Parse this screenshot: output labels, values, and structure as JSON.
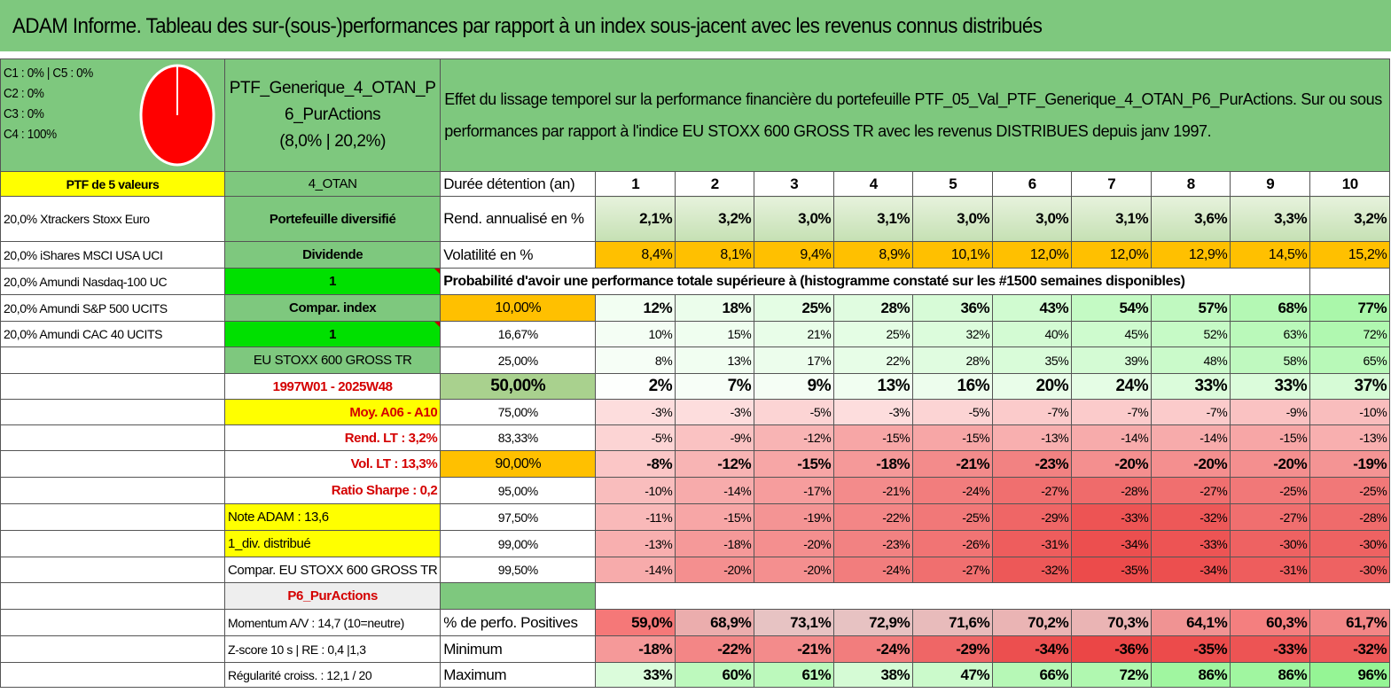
{
  "title": "ADAM Informe. Tableau des sur-(sous-)performances par rapport à un index sous-jacent avec les revenus connus distribués",
  "legend": [
    "C1 : 0% | C5 : 0%",
    "C2 : 0%",
    "C3 : 0%",
    "C4 : 100%"
  ],
  "pie_colors": {
    "fill": "#ff0000",
    "stroke": "#ffffff"
  },
  "ptf_name": "PTF_Generique_4_OTAN_P6_PurActions",
  "ptf_perf": "(8,0% | 20,2%)",
  "description": "Effet du lissage temporel sur la performance financière du portefeuille PTF_05_Val_PTF_Generique_4_OTAN_P6_PurActions. Sur ou sous performances par rapport à l'indice EU STOXX 600 GROSS TR avec les revenus DISTRIBUES depuis janv 1997.",
  "left": {
    "ptf_count": "PTF de 5 valeurs",
    "holdings": [
      "20,0% Xtrackers Stoxx Euro",
      "20,0% iShares MSCI USA UCI",
      "20,0% Amundi Nasdaq-100 UC",
      "20,0% Amundi S&P 500 UCITS",
      "20,0% Amundi CAC 40 UCITS"
    ]
  },
  "mid": {
    "code": "4_OTAN",
    "portfolio_type": "Portefeuille diversifié",
    "dividende": "Dividende",
    "val1": "1",
    "compar_index": "Compar. index",
    "val2": "1",
    "index_name": "EU STOXX 600 GROSS TR",
    "period": "1997W01 - 2025W48",
    "moy": "Moy. A06 - A10",
    "rend_lt": "Rend. LT : 3,2%",
    "vol_lt": "Vol. LT : 13,3%",
    "sharpe": "Ratio Sharpe : 0,2",
    "note": "Note ADAM : 13,6",
    "div": "1_div. distribué",
    "compar": "Compar. EU STOXX 600 GROSS TR",
    "p6": "P6_PurActions",
    "momentum": "Momentum A/V : 14,7 (10=neutre)",
    "zscore": "Z-score 10 s | RE : 0,4 |1,3",
    "regularite": "Régularité croiss. : 12,1 / 20"
  },
  "header": {
    "duree_label": "Durée détention (an)",
    "years": [
      "1",
      "2",
      "3",
      "4",
      "5",
      "6",
      "7",
      "8",
      "9",
      "10"
    ]
  },
  "rend": {
    "label": "Rend. annualisé en %",
    "values": [
      "2,1%",
      "3,2%",
      "3,0%",
      "3,1%",
      "3,0%",
      "3,0%",
      "3,1%",
      "3,6%",
      "3,3%",
      "3,2%"
    ]
  },
  "vol": {
    "label": "Volatilité en %",
    "values": [
      "8,4%",
      "8,1%",
      "9,4%",
      "8,9%",
      "10,1%",
      "12,0%",
      "12,0%",
      "12,9%",
      "14,5%",
      "15,2%"
    ]
  },
  "prob_title": "Probabilité d'avoir une performance totale supérieure à (histogramme constaté sur les #1500 semaines disponibles)",
  "quantiles": [
    {
      "label": "10,00%",
      "values": [
        "12%",
        "18%",
        "25%",
        "28%",
        "36%",
        "43%",
        "54%",
        "57%",
        "68%",
        "77%"
      ]
    },
    {
      "label": "16,67%",
      "values": [
        "10%",
        "15%",
        "21%",
        "25%",
        "32%",
        "40%",
        "45%",
        "52%",
        "63%",
        "72%"
      ]
    },
    {
      "label": "25,00%",
      "values": [
        "8%",
        "13%",
        "17%",
        "22%",
        "28%",
        "35%",
        "39%",
        "48%",
        "58%",
        "65%"
      ]
    },
    {
      "label": "50,00%",
      "values": [
        "2%",
        "7%",
        "9%",
        "13%",
        "16%",
        "20%",
        "24%",
        "33%",
        "33%",
        "37%"
      ]
    },
    {
      "label": "75,00%",
      "values": [
        "-3%",
        "-3%",
        "-5%",
        "-3%",
        "-5%",
        "-7%",
        "-7%",
        "-7%",
        "-9%",
        "-10%"
      ]
    },
    {
      "label": "83,33%",
      "values": [
        "-5%",
        "-9%",
        "-12%",
        "-15%",
        "-15%",
        "-13%",
        "-14%",
        "-14%",
        "-15%",
        "-13%"
      ]
    },
    {
      "label": "90,00%",
      "values": [
        "-8%",
        "-12%",
        "-15%",
        "-18%",
        "-21%",
        "-23%",
        "-20%",
        "-20%",
        "-20%",
        "-19%"
      ]
    },
    {
      "label": "95,00%",
      "values": [
        "-10%",
        "-14%",
        "-17%",
        "-21%",
        "-24%",
        "-27%",
        "-28%",
        "-27%",
        "-25%",
        "-25%"
      ]
    },
    {
      "label": "97,50%",
      "values": [
        "-11%",
        "-15%",
        "-19%",
        "-22%",
        "-25%",
        "-29%",
        "-33%",
        "-32%",
        "-27%",
        "-28%"
      ]
    },
    {
      "label": "99,00%",
      "values": [
        "-13%",
        "-18%",
        "-20%",
        "-23%",
        "-26%",
        "-31%",
        "-34%",
        "-33%",
        "-30%",
        "-30%"
      ]
    },
    {
      "label": "99,50%",
      "values": [
        "-14%",
        "-20%",
        "-20%",
        "-24%",
        "-27%",
        "-32%",
        "-35%",
        "-34%",
        "-31%",
        "-30%"
      ]
    }
  ],
  "positives": {
    "label": "% de perfo. Positives",
    "values": [
      "59,0%",
      "68,9%",
      "73,1%",
      "72,9%",
      "71,6%",
      "70,2%",
      "70,3%",
      "64,1%",
      "60,3%",
      "61,7%"
    ]
  },
  "minimum": {
    "label": "Minimum",
    "values": [
      "-18%",
      "-22%",
      "-21%",
      "-24%",
      "-29%",
      "-34%",
      "-36%",
      "-35%",
      "-33%",
      "-32%"
    ]
  },
  "maximum": {
    "label": "Maximum",
    "values": [
      "33%",
      "60%",
      "61%",
      "38%",
      "47%",
      "66%",
      "72%",
      "86%",
      "86%",
      "96%"
    ]
  }
}
